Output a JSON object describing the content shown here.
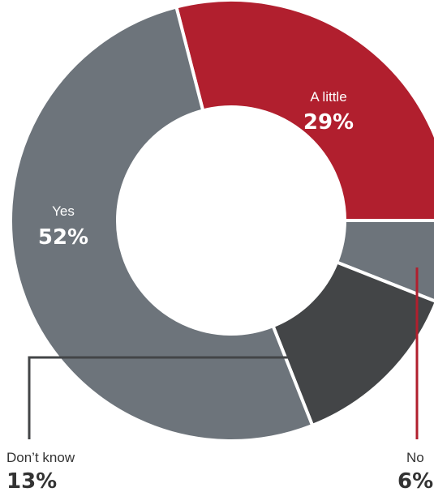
{
  "chart_data": {
    "type": "pie",
    "categories": [
      "A little",
      "No",
      "Don't know",
      "Yes"
    ],
    "values": [
      29,
      6,
      13,
      52
    ],
    "value_labels": [
      "29%",
      "6%",
      "13%",
      "52%"
    ],
    "colors": [
      "#b11f2e",
      "#6d747b",
      "#434547",
      "#6d747b"
    ],
    "donut": true,
    "legend": "none",
    "labels": {
      "a_little": {
        "name": "A little",
        "value": "29%"
      },
      "yes": {
        "name": "Yes",
        "value": "52%"
      },
      "dont_know": {
        "name": "Don’t know",
        "value": "13%"
      },
      "no": {
        "name": "No",
        "value": "6%"
      }
    }
  }
}
